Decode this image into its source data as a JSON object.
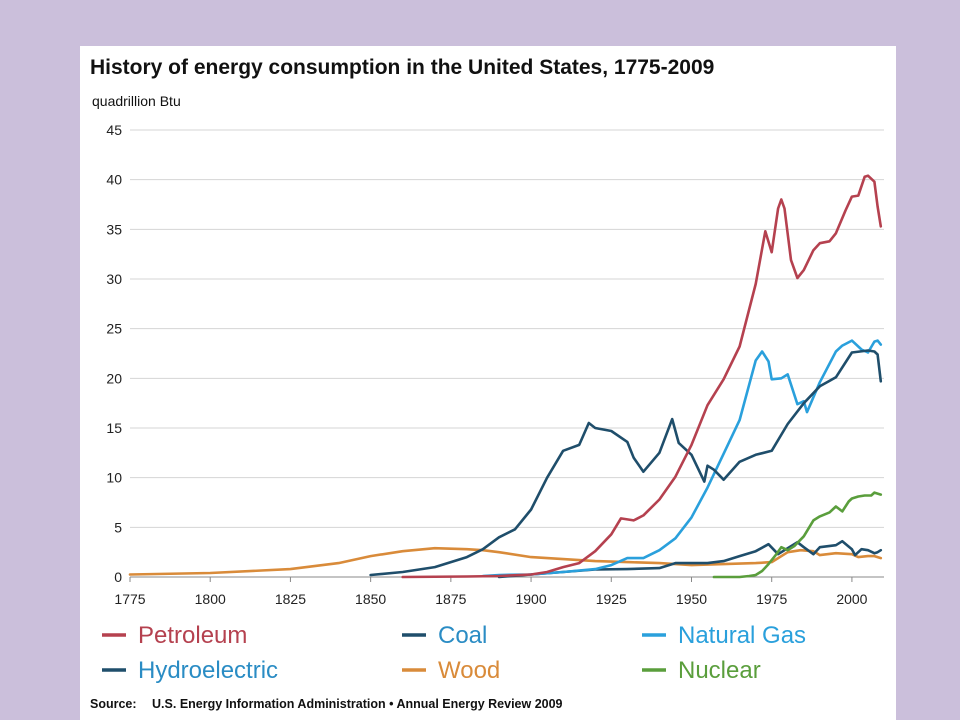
{
  "chart_data": {
    "type": "line",
    "title": "History of energy consumption in the United States, 1775-2009",
    "ylabel": "quadrillion Btu",
    "source_label": "Source:",
    "source_text": "U.S. Energy Information Administration  •  Annual Energy Review 2009",
    "xlim": [
      1775,
      2009
    ],
    "ylim": [
      0,
      45
    ],
    "x_ticks": [
      1775,
      1800,
      1825,
      1850,
      1875,
      1900,
      1925,
      1950,
      1975,
      2000
    ],
    "y_ticks": [
      0,
      5,
      10,
      15,
      20,
      25,
      30,
      35,
      40,
      45
    ],
    "grid": "horizontal",
    "legend_position": "bottom",
    "series": [
      {
        "name": "Petroleum",
        "color": "#b5414f",
        "points": [
          [
            1860,
            0
          ],
          [
            1880,
            0.05
          ],
          [
            1890,
            0.1
          ],
          [
            1900,
            0.25
          ],
          [
            1905,
            0.5
          ],
          [
            1910,
            1.0
          ],
          [
            1915,
            1.4
          ],
          [
            1920,
            2.6
          ],
          [
            1925,
            4.3
          ],
          [
            1928,
            5.9
          ],
          [
            1932,
            5.7
          ],
          [
            1935,
            6.2
          ],
          [
            1940,
            7.8
          ],
          [
            1945,
            10.1
          ],
          [
            1950,
            13.3
          ],
          [
            1955,
            17.3
          ],
          [
            1960,
            19.9
          ],
          [
            1965,
            23.2
          ],
          [
            1970,
            29.5
          ],
          [
            1973,
            34.8
          ],
          [
            1975,
            32.7
          ],
          [
            1977,
            37.1
          ],
          [
            1978,
            38.0
          ],
          [
            1979,
            37.1
          ],
          [
            1981,
            31.9
          ],
          [
            1983,
            30.1
          ],
          [
            1985,
            30.9
          ],
          [
            1988,
            32.9
          ],
          [
            1990,
            33.6
          ],
          [
            1993,
            33.8
          ],
          [
            1995,
            34.6
          ],
          [
            1998,
            36.9
          ],
          [
            2000,
            38.3
          ],
          [
            2002,
            38.4
          ],
          [
            2004,
            40.3
          ],
          [
            2005,
            40.4
          ],
          [
            2007,
            39.8
          ],
          [
            2008,
            37.3
          ],
          [
            2009,
            35.3
          ]
        ]
      },
      {
        "name": "Coal",
        "color": "#1f4e6b",
        "points": [
          [
            1850,
            0.2
          ],
          [
            1860,
            0.5
          ],
          [
            1870,
            1.0
          ],
          [
            1880,
            2.0
          ],
          [
            1885,
            2.8
          ],
          [
            1890,
            4.0
          ],
          [
            1895,
            4.8
          ],
          [
            1900,
            6.8
          ],
          [
            1905,
            10.0
          ],
          [
            1910,
            12.7
          ],
          [
            1915,
            13.3
          ],
          [
            1918,
            15.5
          ],
          [
            1920,
            15.0
          ],
          [
            1925,
            14.7
          ],
          [
            1930,
            13.6
          ],
          [
            1932,
            12.0
          ],
          [
            1935,
            10.6
          ],
          [
            1940,
            12.5
          ],
          [
            1944,
            15.9
          ],
          [
            1946,
            13.5
          ],
          [
            1950,
            12.3
          ],
          [
            1954,
            9.6
          ],
          [
            1955,
            11.2
          ],
          [
            1957,
            10.8
          ],
          [
            1960,
            9.8
          ],
          [
            1965,
            11.6
          ],
          [
            1970,
            12.3
          ],
          [
            1975,
            12.7
          ],
          [
            1980,
            15.4
          ],
          [
            1985,
            17.5
          ],
          [
            1990,
            19.2
          ],
          [
            1995,
            20.1
          ],
          [
            2000,
            22.6
          ],
          [
            2005,
            22.8
          ],
          [
            2007,
            22.7
          ],
          [
            2008,
            22.4
          ],
          [
            2009,
            19.7
          ]
        ]
      },
      {
        "name": "Natural Gas",
        "color": "#2aa0dc",
        "points": [
          [
            1885,
            0.1
          ],
          [
            1890,
            0.2
          ],
          [
            1900,
            0.25
          ],
          [
            1910,
            0.5
          ],
          [
            1920,
            0.8
          ],
          [
            1925,
            1.2
          ],
          [
            1930,
            1.9
          ],
          [
            1935,
            1.9
          ],
          [
            1940,
            2.7
          ],
          [
            1945,
            3.9
          ],
          [
            1950,
            6.0
          ],
          [
            1955,
            9.0
          ],
          [
            1960,
            12.4
          ],
          [
            1965,
            15.8
          ],
          [
            1970,
            21.8
          ],
          [
            1972,
            22.7
          ],
          [
            1974,
            21.7
          ],
          [
            1975,
            19.9
          ],
          [
            1978,
            20.0
          ],
          [
            1980,
            20.4
          ],
          [
            1983,
            17.4
          ],
          [
            1985,
            17.7
          ],
          [
            1986,
            16.6
          ],
          [
            1990,
            19.6
          ],
          [
            1995,
            22.7
          ],
          [
            1997,
            23.3
          ],
          [
            2000,
            23.8
          ],
          [
            2003,
            22.9
          ],
          [
            2005,
            22.6
          ],
          [
            2007,
            23.7
          ],
          [
            2008,
            23.8
          ],
          [
            2009,
            23.4
          ]
        ]
      },
      {
        "name": "Hydroelectric",
        "color": "#1f4e6b",
        "points": [
          [
            1890,
            0
          ],
          [
            1900,
            0.25
          ],
          [
            1910,
            0.5
          ],
          [
            1920,
            0.75
          ],
          [
            1930,
            0.8
          ],
          [
            1940,
            0.9
          ],
          [
            1945,
            1.4
          ],
          [
            1950,
            1.4
          ],
          [
            1955,
            1.4
          ],
          [
            1960,
            1.6
          ],
          [
            1965,
            2.1
          ],
          [
            1970,
            2.6
          ],
          [
            1974,
            3.3
          ],
          [
            1977,
            2.3
          ],
          [
            1980,
            2.9
          ],
          [
            1983,
            3.5
          ],
          [
            1985,
            3.0
          ],
          [
            1988,
            2.3
          ],
          [
            1990,
            3.0
          ],
          [
            1995,
            3.2
          ],
          [
            1997,
            3.6
          ],
          [
            2000,
            2.8
          ],
          [
            2001,
            2.2
          ],
          [
            2003,
            2.8
          ],
          [
            2005,
            2.7
          ],
          [
            2007,
            2.4
          ],
          [
            2008,
            2.5
          ],
          [
            2009,
            2.7
          ]
        ]
      },
      {
        "name": "Wood",
        "color": "#d98b3a",
        "points": [
          [
            1775,
            0.25
          ],
          [
            1800,
            0.4
          ],
          [
            1825,
            0.8
          ],
          [
            1840,
            1.4
          ],
          [
            1850,
            2.1
          ],
          [
            1860,
            2.6
          ],
          [
            1870,
            2.9
          ],
          [
            1880,
            2.8
          ],
          [
            1885,
            2.7
          ],
          [
            1890,
            2.5
          ],
          [
            1900,
            2.0
          ],
          [
            1910,
            1.8
          ],
          [
            1920,
            1.6
          ],
          [
            1930,
            1.5
          ],
          [
            1940,
            1.4
          ],
          [
            1950,
            1.2
          ],
          [
            1960,
            1.3
          ],
          [
            1970,
            1.4
          ],
          [
            1975,
            1.5
          ],
          [
            1980,
            2.5
          ],
          [
            1984,
            2.7
          ],
          [
            1988,
            2.6
          ],
          [
            1990,
            2.2
          ],
          [
            1995,
            2.4
          ],
          [
            2000,
            2.3
          ],
          [
            2002,
            2.0
          ],
          [
            2005,
            2.1
          ],
          [
            2007,
            2.1
          ],
          [
            2009,
            1.9
          ]
        ]
      },
      {
        "name": "Nuclear",
        "color": "#5a9e3c",
        "points": [
          [
            1957,
            0
          ],
          [
            1965,
            0
          ],
          [
            1968,
            0.1
          ],
          [
            1970,
            0.2
          ],
          [
            1972,
            0.6
          ],
          [
            1974,
            1.3
          ],
          [
            1976,
            2.1
          ],
          [
            1978,
            3.0
          ],
          [
            1980,
            2.7
          ],
          [
            1982,
            3.1
          ],
          [
            1985,
            4.1
          ],
          [
            1988,
            5.7
          ],
          [
            1990,
            6.1
          ],
          [
            1993,
            6.5
          ],
          [
            1995,
            7.1
          ],
          [
            1997,
            6.6
          ],
          [
            1999,
            7.6
          ],
          [
            2000,
            7.9
          ],
          [
            2002,
            8.1
          ],
          [
            2004,
            8.2
          ],
          [
            2006,
            8.2
          ],
          [
            2007,
            8.5
          ],
          [
            2008,
            8.4
          ],
          [
            2009,
            8.3
          ]
        ]
      }
    ]
  }
}
